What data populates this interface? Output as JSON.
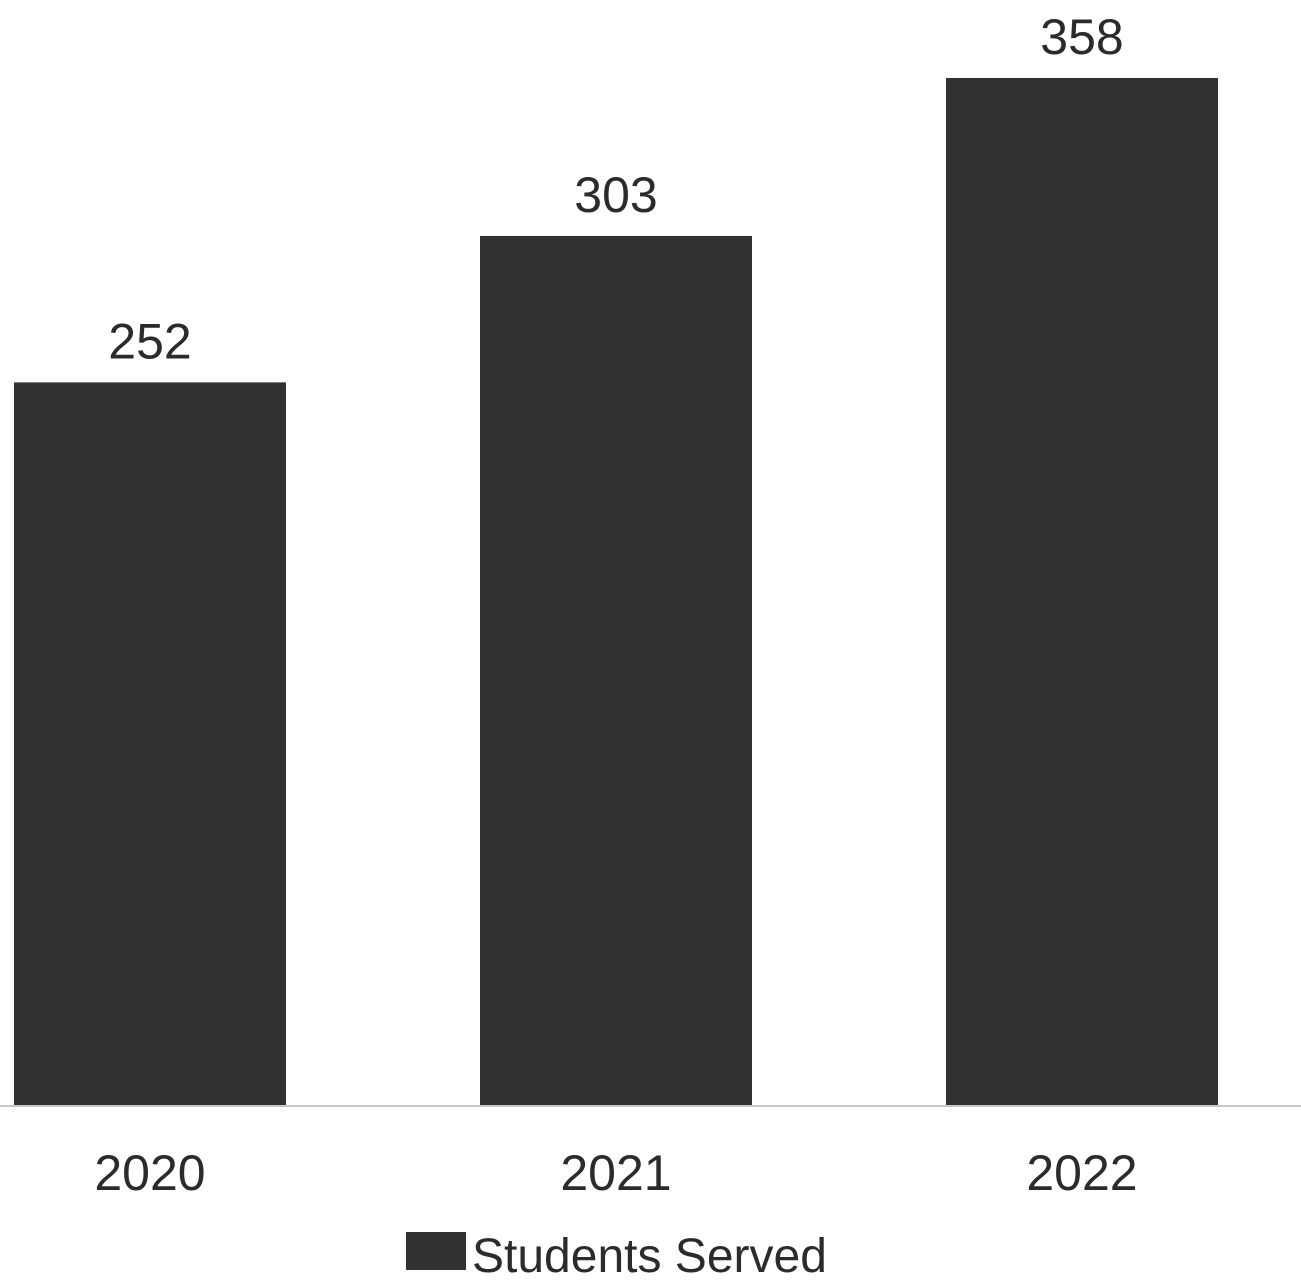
{
  "chart_data": {
    "type": "bar",
    "categories": [
      "2020",
      "2021",
      "2022"
    ],
    "series": [
      {
        "name": "Students Served",
        "values": [
          252,
          303,
          358
        ],
        "color": "#313130"
      }
    ],
    "value_labels": [
      "252",
      "303",
      "358"
    ],
    "title": "",
    "xlabel": "",
    "ylabel": "",
    "ylim": [
      0,
      358
    ],
    "grid": false,
    "legend": "bottom-center",
    "axis_line_color": "#c8c8c8"
  }
}
